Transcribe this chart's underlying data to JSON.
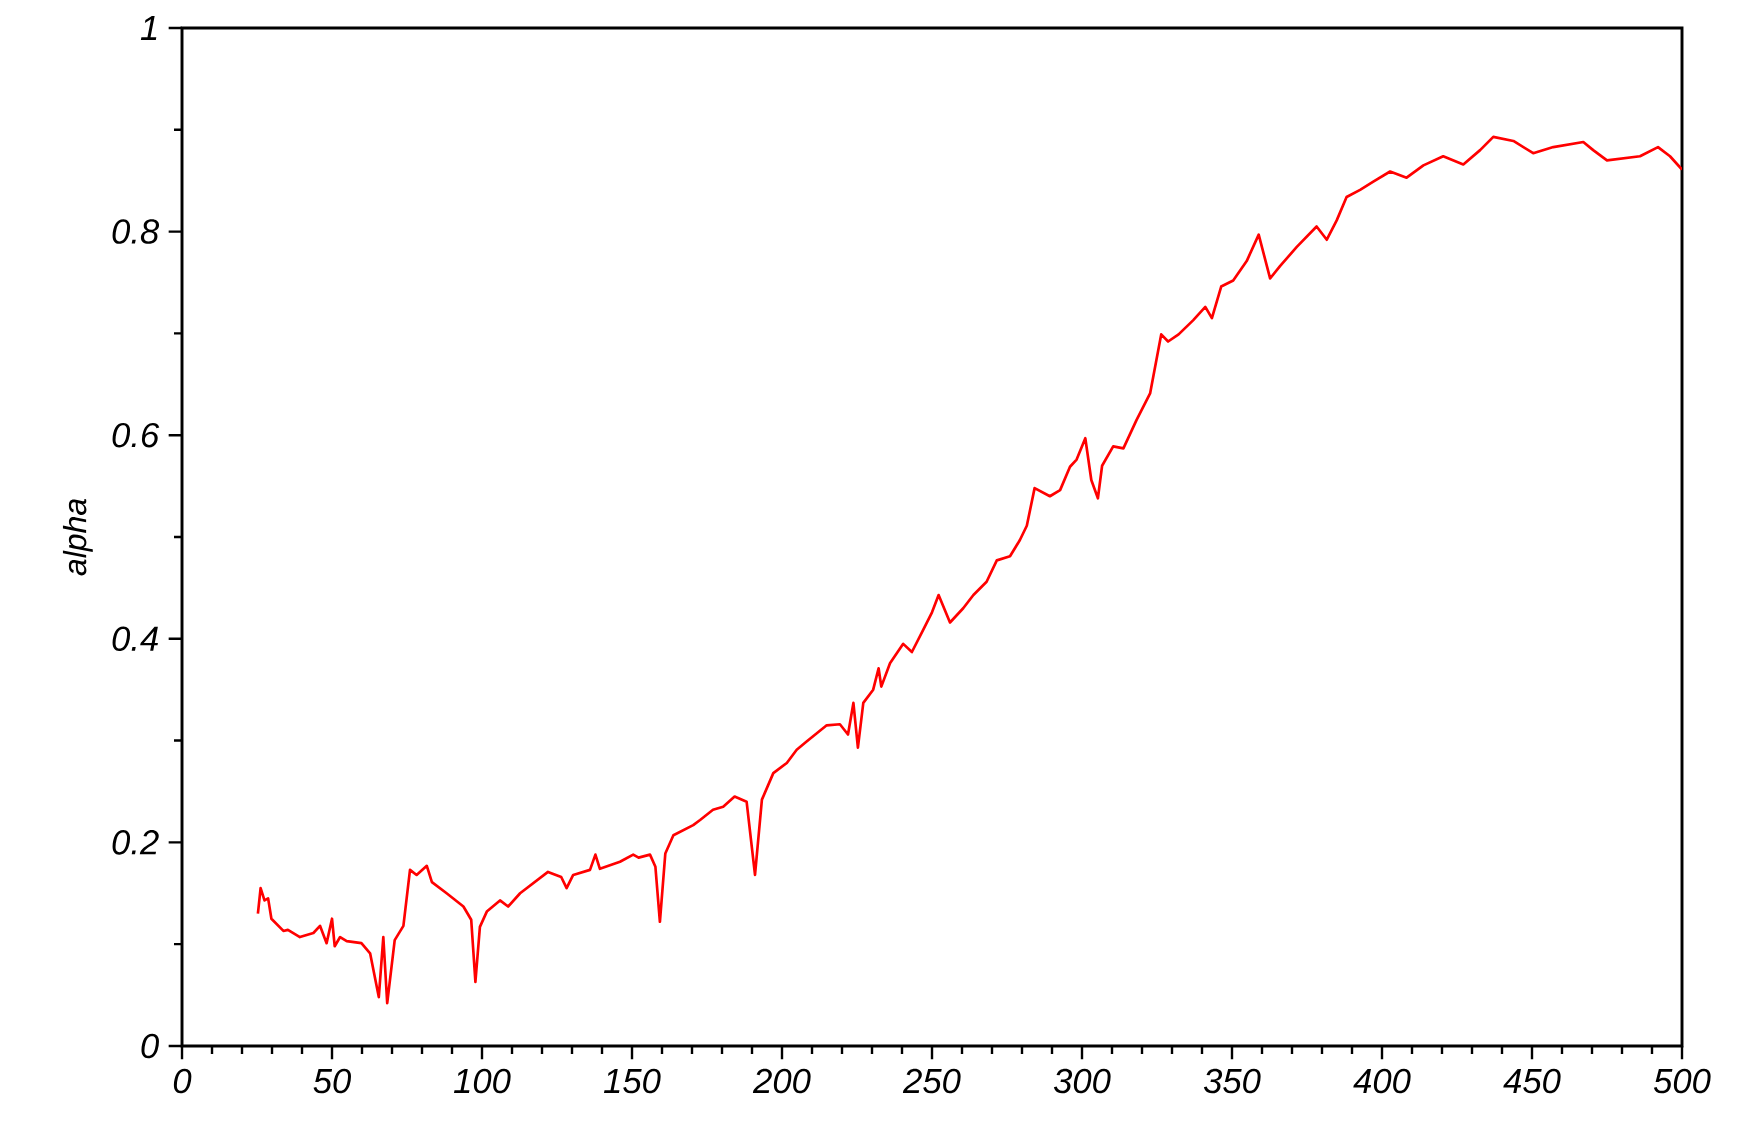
{
  "chart_data": {
    "type": "line",
    "ylabel": "alpha",
    "xlim": [
      0,
      500
    ],
    "xticks": [
      0,
      50,
      100,
      150,
      200,
      250,
      300,
      350,
      400,
      450,
      500
    ],
    "ylim": [
      0,
      1
    ],
    "yticks": [
      0,
      0.2,
      0.4,
      0.6,
      0.8,
      1
    ],
    "grid": false,
    "marker": "none",
    "line_style": "solid",
    "x": [
      25.3,
      26.2,
      27.5,
      28.7,
      29.8,
      33.8,
      35.3,
      39.3,
      43.8,
      46,
      48.2,
      50,
      50.9,
      52.7,
      54.9,
      59.8,
      62.7,
      65.6,
      67.1,
      68.4,
      70.9,
      73.8,
      76,
      78.2,
      81.6,
      83.3,
      88.2,
      93.8,
      96.4,
      97.8,
      99.3,
      101.6,
      106,
      108.7,
      112.7,
      122,
      126.4,
      128.2,
      130.4,
      136,
      137.8,
      139.3,
      146,
      150.4,
      152.2,
      156,
      157.8,
      159.3,
      161.1,
      163.8,
      170.4,
      172.7,
      177,
      180.4,
      184.2,
      188.2,
      191,
      193.3,
      197.1,
      201.6,
      204.9,
      208.2,
      214.9,
      219.3,
      222,
      223.8,
      225.3,
      227.1,
      230.4,
      232.2,
      233.1,
      236,
      240.4,
      243.3,
      247.1,
      250,
      252.2,
      256,
      260.4,
      263.8,
      268.2,
      271.6,
      276,
      279.3,
      281.6,
      284.2,
      289.3,
      292.7,
      296,
      298.2,
      301.1,
      303.1,
      305.3,
      306.7,
      310.4,
      313.8,
      318.2,
      322.7,
      326.4,
      328.7,
      332.2,
      337.1,
      341.1,
      343.3,
      346.4,
      350.4,
      354.9,
      358.9,
      362.7,
      366,
      371.6,
      378.2,
      381.6,
      384.9,
      388.2,
      392.7,
      397.1,
      402.7,
      408.2,
      413.8,
      420.4,
      427.1,
      432.7,
      437.1,
      443.8,
      450.4,
      457.1,
      467.1,
      470.4,
      475,
      486,
      492,
      496,
      500
    ],
    "series": [
      {
        "color": "#ff0000",
        "values": [
          0.13,
          0.155,
          0.143,
          0.145,
          0.125,
          0.113,
          0.114,
          0.107,
          0.111,
          0.118,
          0.101,
          0.125,
          0.098,
          0.107,
          0.103,
          0.101,
          0.091,
          0.048,
          0.107,
          0.042,
          0.104,
          0.118,
          0.173,
          0.168,
          0.177,
          0.161,
          0.15,
          0.137,
          0.124,
          0.063,
          0.117,
          0.132,
          0.143,
          0.137,
          0.15,
          0.171,
          0.166,
          0.155,
          0.168,
          0.173,
          0.188,
          0.174,
          0.181,
          0.188,
          0.185,
          0.188,
          0.176,
          0.122,
          0.189,
          0.207,
          0.217,
          0.222,
          0.232,
          0.235,
          0.245,
          0.24,
          0.168,
          0.242,
          0.268,
          0.278,
          0.291,
          0.299,
          0.315,
          0.316,
          0.306,
          0.337,
          0.293,
          0.337,
          0.35,
          0.371,
          0.353,
          0.376,
          0.395,
          0.387,
          0.409,
          0.426,
          0.443,
          0.416,
          0.43,
          0.443,
          0.456,
          0.477,
          0.481,
          0.497,
          0.511,
          0.548,
          0.54,
          0.546,
          0.569,
          0.576,
          0.597,
          0.556,
          0.538,
          0.57,
          0.589,
          0.587,
          0.615,
          0.641,
          0.699,
          0.692,
          0.699,
          0.713,
          0.726,
          0.715,
          0.746,
          0.752,
          0.771,
          0.797,
          0.754,
          0.766,
          0.785,
          0.805,
          0.792,
          0.811,
          0.834,
          0.841,
          0.849,
          0.859,
          0.853,
          0.865,
          0.874,
          0.866,
          0.88,
          0.893,
          0.889,
          0.877,
          0.883,
          0.888,
          0.88,
          0.87,
          0.874,
          0.883,
          0.874,
          0.861
        ]
      }
    ]
  }
}
